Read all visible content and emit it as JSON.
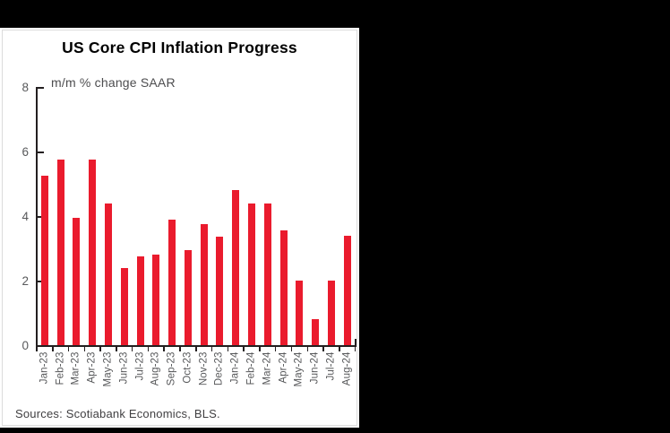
{
  "page": {
    "background_color": "#000000",
    "panel_background_color": "#ffffff"
  },
  "chart_panel": {
    "title": "US Core CPI Inflation Progress",
    "subtitle": "m/m % change SAAR",
    "sources": "Sources: Scotiabank Economics, BLS."
  },
  "chart_data": {
    "type": "bar",
    "title": "US Core CPI Inflation Progress",
    "subtitle": "m/m % change SAAR",
    "categories": [
      "Jan-23",
      "Feb-23",
      "Mar-23",
      "Apr-23",
      "May-23",
      "Jun-23",
      "Jul-23",
      "Aug-23",
      "Sep-23",
      "Oct-23",
      "Nov-23",
      "Dec-23",
      "Jan-24",
      "Feb-24",
      "Mar-24",
      "Apr-24",
      "May-24",
      "Jun-24",
      "Jul-24",
      "Aug-24"
    ],
    "values": [
      5.25,
      5.75,
      3.95,
      5.75,
      4.4,
      2.4,
      2.75,
      2.8,
      3.9,
      2.95,
      3.75,
      3.35,
      4.8,
      4.4,
      4.4,
      3.55,
      2.0,
      0.8,
      2.0,
      3.4
    ],
    "xlabel": "",
    "ylabel": "m/m % change SAAR",
    "ylim": [
      0,
      8
    ],
    "yticks": [
      0,
      2,
      4,
      6,
      8
    ],
    "grid": false,
    "legend": "none",
    "bar_color": "#ea1b2d",
    "axis_color": "#231f20",
    "tick_label_color": "#58595b",
    "annotations": [
      "Sources: Scotiabank Economics, BLS."
    ]
  }
}
